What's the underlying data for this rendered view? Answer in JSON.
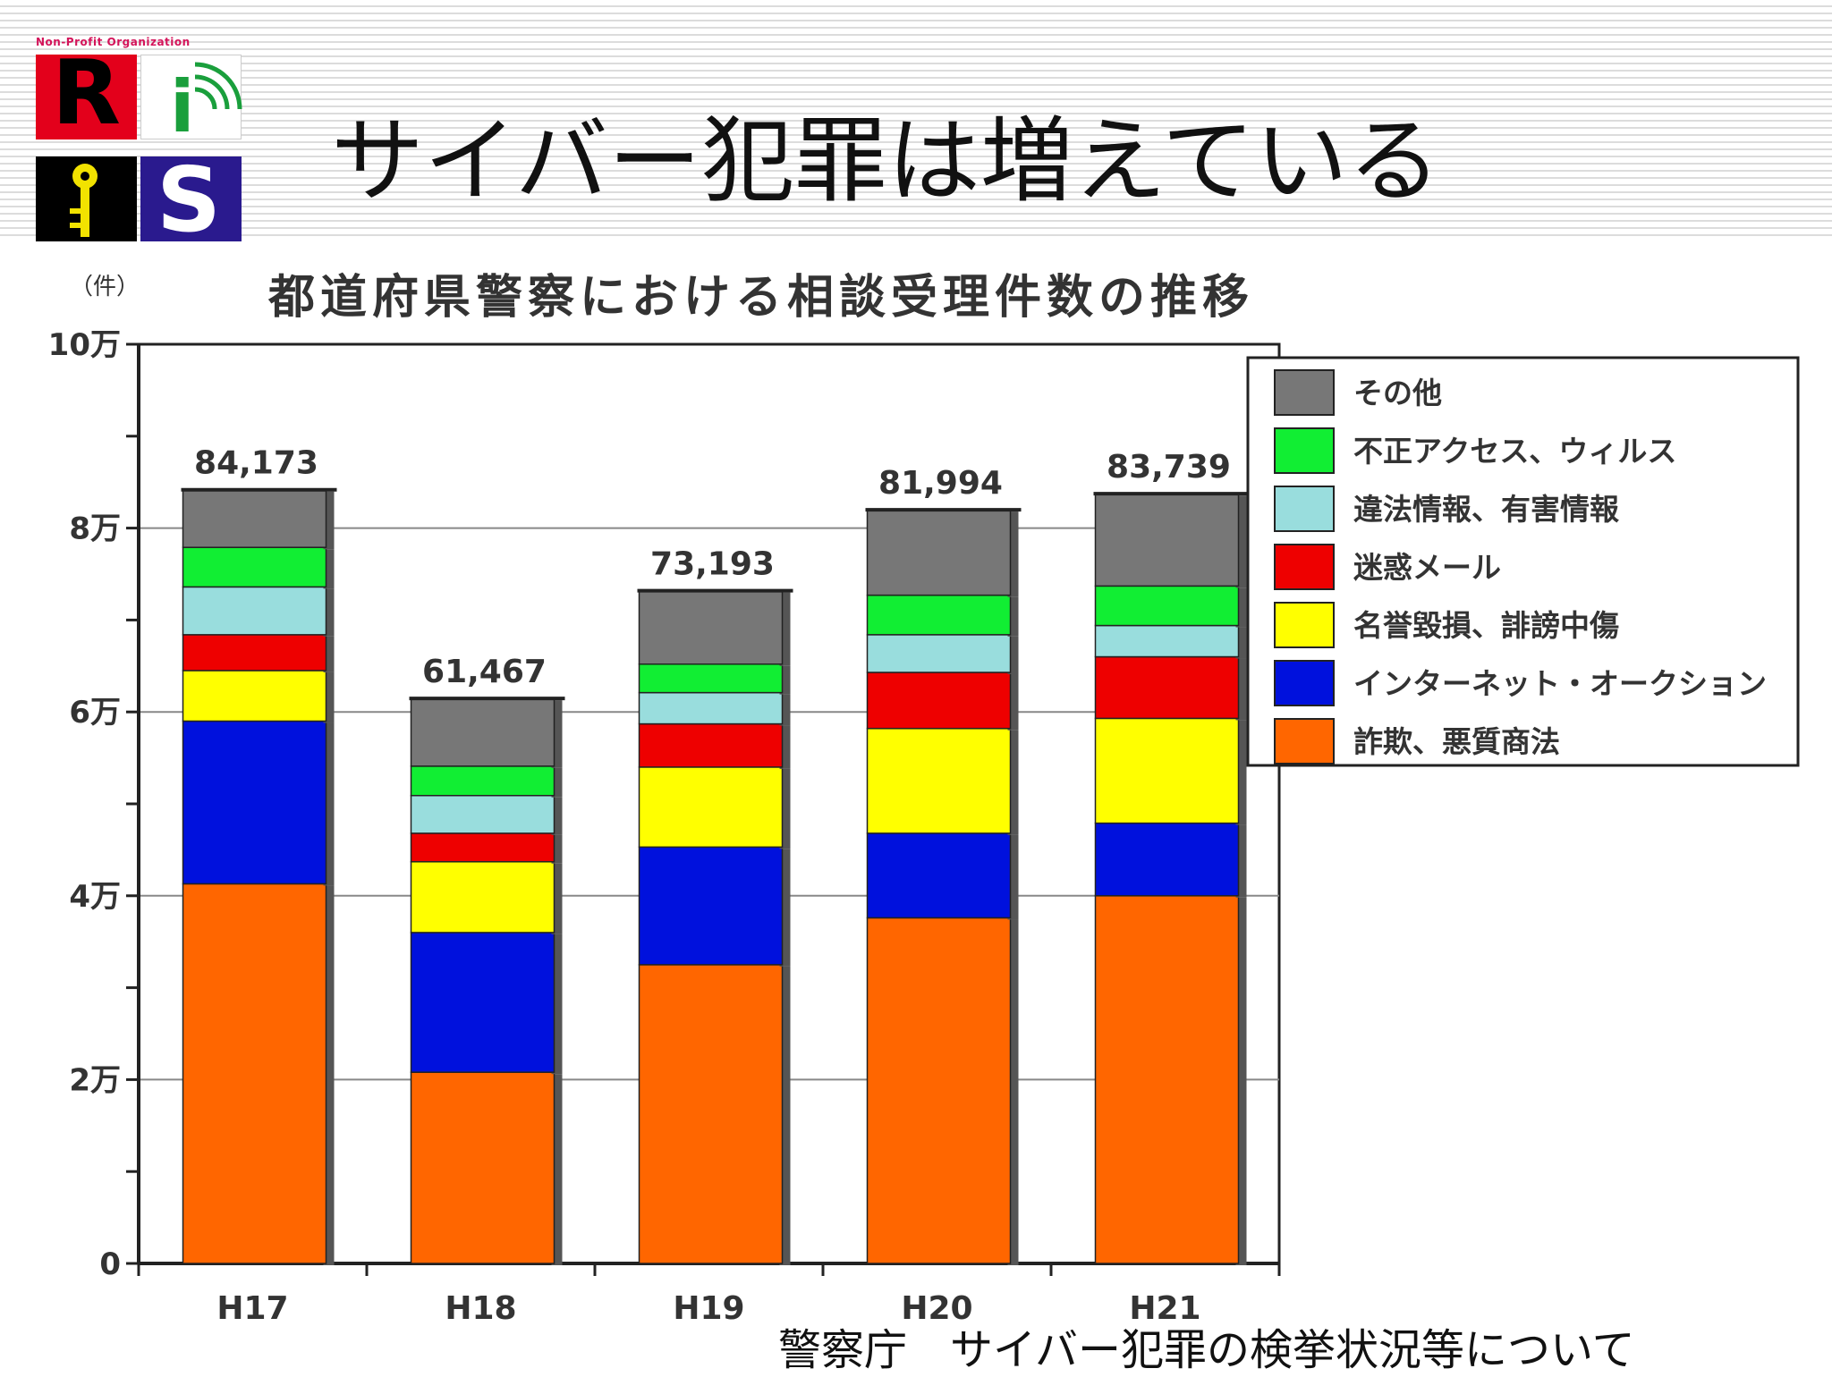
{
  "slide": {
    "title": "サイバー犯罪は増えている",
    "source": "警察庁　サイバー犯罪の検挙状況等について"
  },
  "logo": {
    "caption": "Non-Profit Organization",
    "letters": [
      "R",
      "i",
      "S"
    ]
  },
  "colors": {
    "fraud": "#ff6600",
    "auction": "#0011dd",
    "defamation": "#ffff00",
    "spam": "#ee0000",
    "illegal": "#99dddd",
    "unauthorized": "#11ee33",
    "other": "#777777"
  },
  "chart_data": {
    "type": "bar",
    "stacked": true,
    "title": "都道府県警察における相談受理件数の推移",
    "unit_label": "（件）",
    "categories": [
      "H17",
      "H18",
      "H19",
      "H20",
      "H21"
    ],
    "y_ticks": [
      {
        "value": 0,
        "label": "0"
      },
      {
        "value": 20000,
        "label": "2万"
      },
      {
        "value": 40000,
        "label": "4万"
      },
      {
        "value": 60000,
        "label": "6万"
      },
      {
        "value": 80000,
        "label": "8万"
      },
      {
        "value": 100000,
        "label": "10万"
      }
    ],
    "ylim": [
      0,
      100000
    ],
    "gridlines": [
      20000,
      40000,
      60000,
      80000
    ],
    "totals": [
      84173,
      61467,
      73193,
      81994,
      83739
    ],
    "total_labels": [
      "84,173",
      "61,467",
      "73,193",
      "81,994",
      "83,739"
    ],
    "series": [
      {
        "name": "詐欺、悪質商法",
        "color_key": "fraud",
        "values": [
          41300,
          20800,
          32500,
          37600,
          40000
        ]
      },
      {
        "name": "インターネット・オークション",
        "color_key": "auction",
        "values": [
          17700,
          15200,
          12800,
          9200,
          7900
        ]
      },
      {
        "name": "名誉毀損、誹謗中傷",
        "color_key": "defamation",
        "values": [
          5500,
          7700,
          8700,
          11400,
          11400
        ]
      },
      {
        "name": "迷惑メール",
        "color_key": "spam",
        "values": [
          3900,
          3100,
          4700,
          6100,
          6700
        ]
      },
      {
        "name": "違法情報、有害情報",
        "color_key": "illegal",
        "values": [
          5200,
          4100,
          3400,
          4100,
          3400
        ]
      },
      {
        "name": "不正アクセス、ウィルス",
        "color_key": "unauthorized",
        "values": [
          4300,
          3200,
          3100,
          4300,
          4300
        ]
      },
      {
        "name": "その他",
        "color_key": "other",
        "values": [
          6273,
          7367,
          7993,
          9294,
          10039
        ]
      }
    ],
    "legend_order": [
      "その他",
      "不正アクセス、ウィルス",
      "違法情報、有害情報",
      "迷惑メール",
      "名誉毀損、誹謗中傷",
      "インターネット・オークション",
      "詐欺、悪質商法"
    ],
    "legend_position": "top-right"
  }
}
